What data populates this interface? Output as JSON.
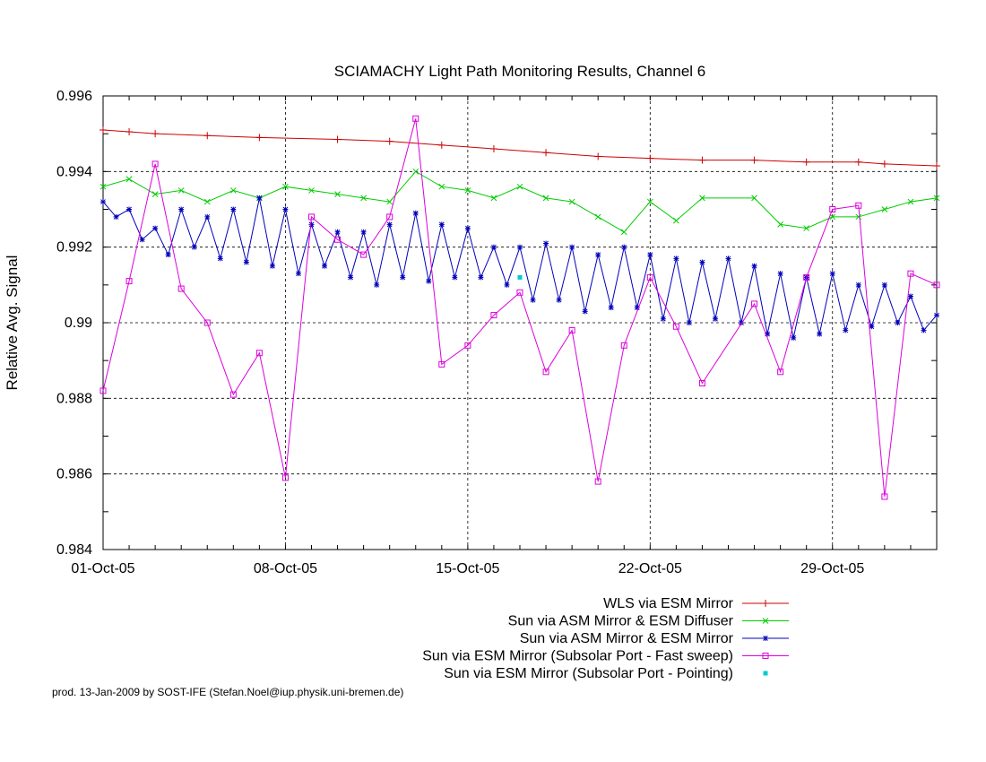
{
  "chart_data": {
    "type": "line",
    "title": "SCIAMACHY Light Path Monitoring Results, Channel 6",
    "xlabel": "",
    "ylabel": "Relative Avg. Signal",
    "xlim": [
      "2005-10-01",
      "2005-11-02"
    ],
    "ylim": [
      0.984,
      0.996
    ],
    "x_ticks": [
      "01-Oct-05",
      "08-Oct-05",
      "15-Oct-05",
      "22-Oct-05",
      "29-Oct-05"
    ],
    "y_ticks": [
      "0.984",
      "0.986",
      "0.988",
      "0.99",
      "0.992",
      "0.994",
      "0.996"
    ],
    "grid": true,
    "legend_position": "bottom-right, below plot",
    "series": [
      {
        "name": "WLS via ESM Mirror",
        "color": "#cc0000",
        "marker": "plus",
        "points": [
          [
            "2005-10-01",
            0.9951
          ],
          [
            "2005-10-02",
            0.99505
          ],
          [
            "2005-10-03",
            0.995
          ],
          [
            "2005-10-05",
            0.99495
          ],
          [
            "2005-10-07",
            0.9949
          ],
          [
            "2005-10-10",
            0.99485
          ],
          [
            "2005-10-12",
            0.9948
          ],
          [
            "2005-10-14",
            0.9947
          ],
          [
            "2005-10-16",
            0.9946
          ],
          [
            "2005-10-18",
            0.9945
          ],
          [
            "2005-10-20",
            0.9944
          ],
          [
            "2005-10-22",
            0.99435
          ],
          [
            "2005-10-24",
            0.9943
          ],
          [
            "2005-10-26",
            0.9943
          ],
          [
            "2005-10-28",
            0.99425
          ],
          [
            "2005-10-30",
            0.99425
          ],
          [
            "2005-10-31",
            0.9942
          ],
          [
            "2005-11-02",
            0.99415
          ]
        ]
      },
      {
        "name": "Sun via ASM Mirror & ESM Diffuser",
        "color": "#00cc00",
        "marker": "x",
        "points": [
          [
            "2005-10-01",
            0.9936
          ],
          [
            "2005-10-02",
            0.9938
          ],
          [
            "2005-10-03",
            0.9934
          ],
          [
            "2005-10-04",
            0.9935
          ],
          [
            "2005-10-05",
            0.9932
          ],
          [
            "2005-10-06",
            0.9935
          ],
          [
            "2005-10-07",
            0.9933
          ],
          [
            "2005-10-08",
            0.9936
          ],
          [
            "2005-10-09",
            0.9935
          ],
          [
            "2005-10-10",
            0.9934
          ],
          [
            "2005-10-11",
            0.9933
          ],
          [
            "2005-10-12",
            0.9932
          ],
          [
            "2005-10-13",
            0.994
          ],
          [
            "2005-10-14",
            0.9936
          ],
          [
            "2005-10-15",
            0.9935
          ],
          [
            "2005-10-16",
            0.9933
          ],
          [
            "2005-10-17",
            0.9936
          ],
          [
            "2005-10-18",
            0.9933
          ],
          [
            "2005-10-19",
            0.9932
          ],
          [
            "2005-10-20",
            0.9928
          ],
          [
            "2005-10-21",
            0.9924
          ],
          [
            "2005-10-22",
            0.9932
          ],
          [
            "2005-10-23",
            0.9927
          ],
          [
            "2005-10-24",
            0.9933
          ],
          [
            "2005-10-26",
            0.9933
          ],
          [
            "2005-10-27",
            0.9926
          ],
          [
            "2005-10-28",
            0.9925
          ],
          [
            "2005-10-29",
            0.9928
          ],
          [
            "2005-10-30",
            0.9928
          ],
          [
            "2005-10-31",
            0.993
          ],
          [
            "2005-11-01",
            0.9932
          ],
          [
            "2005-11-02",
            0.9933
          ]
        ]
      },
      {
        "name": "Sun via ASM Mirror & ESM Mirror",
        "color": "#0000bb",
        "marker": "star",
        "points": [
          [
            "2005-10-01",
            0.9932
          ],
          [
            "2005-10-01.5",
            0.9928
          ],
          [
            "2005-10-02",
            0.993
          ],
          [
            "2005-10-02.5",
            0.9922
          ],
          [
            "2005-10-03",
            0.9925
          ],
          [
            "2005-10-03.5",
            0.9918
          ],
          [
            "2005-10-04",
            0.993
          ],
          [
            "2005-10-04.5",
            0.992
          ],
          [
            "2005-10-05",
            0.9928
          ],
          [
            "2005-10-05.5",
            0.9917
          ],
          [
            "2005-10-06",
            0.993
          ],
          [
            "2005-10-06.5",
            0.9916
          ],
          [
            "2005-10-07",
            0.9933
          ],
          [
            "2005-10-07.5",
            0.9915
          ],
          [
            "2005-10-08",
            0.993
          ],
          [
            "2005-10-08.5",
            0.9913
          ],
          [
            "2005-10-09",
            0.9926
          ],
          [
            "2005-10-09.5",
            0.9915
          ],
          [
            "2005-10-10",
            0.9924
          ],
          [
            "2005-10-10.5",
            0.9912
          ],
          [
            "2005-10-11",
            0.9924
          ],
          [
            "2005-10-11.5",
            0.991
          ],
          [
            "2005-10-12",
            0.9926
          ],
          [
            "2005-10-12.5",
            0.9912
          ],
          [
            "2005-10-13",
            0.9929
          ],
          [
            "2005-10-13.5",
            0.9911
          ],
          [
            "2005-10-14",
            0.9926
          ],
          [
            "2005-10-14.5",
            0.9912
          ],
          [
            "2005-10-15",
            0.9925
          ],
          [
            "2005-10-15.5",
            0.9912
          ],
          [
            "2005-10-16",
            0.992
          ],
          [
            "2005-10-16.5",
            0.991
          ],
          [
            "2005-10-17",
            0.992
          ],
          [
            "2005-10-17.5",
            0.9906
          ],
          [
            "2005-10-18",
            0.9921
          ],
          [
            "2005-10-18.5",
            0.9906
          ],
          [
            "2005-10-19",
            0.992
          ],
          [
            "2005-10-19.5",
            0.9903
          ],
          [
            "2005-10-20",
            0.9918
          ],
          [
            "2005-10-20.5",
            0.9904
          ],
          [
            "2005-10-21",
            0.992
          ],
          [
            "2005-10-21.5",
            0.9904
          ],
          [
            "2005-10-22",
            0.9918
          ],
          [
            "2005-10-22.5",
            0.9901
          ],
          [
            "2005-10-23",
            0.9917
          ],
          [
            "2005-10-23.5",
            0.99
          ],
          [
            "2005-10-24",
            0.9916
          ],
          [
            "2005-10-24.5",
            0.9901
          ],
          [
            "2005-10-25",
            0.9917
          ],
          [
            "2005-10-25.5",
            0.99
          ],
          [
            "2005-10-26",
            0.9915
          ],
          [
            "2005-10-26.5",
            0.9897
          ],
          [
            "2005-10-27",
            0.9913
          ],
          [
            "2005-10-27.5",
            0.9896
          ],
          [
            "2005-10-28",
            0.9912
          ],
          [
            "2005-10-28.5",
            0.9897
          ],
          [
            "2005-10-29",
            0.9913
          ],
          [
            "2005-10-29.5",
            0.9898
          ],
          [
            "2005-10-30",
            0.991
          ],
          [
            "2005-10-30.5",
            0.9899
          ],
          [
            "2005-10-31",
            0.991
          ],
          [
            "2005-10-31.5",
            0.99
          ],
          [
            "2005-11-01",
            0.9907
          ],
          [
            "2005-11-01.5",
            0.9898
          ],
          [
            "2005-11-02",
            0.9902
          ]
        ]
      },
      {
        "name": "Sun via ESM Mirror (Subsolar Port - Fast sweep)",
        "color": "#dd00dd",
        "marker": "square",
        "points": [
          [
            "2005-10-01",
            0.9882
          ],
          [
            "2005-10-02",
            0.9911
          ],
          [
            "2005-10-03",
            0.9942
          ],
          [
            "2005-10-04",
            0.9909
          ],
          [
            "2005-10-05",
            0.99
          ],
          [
            "2005-10-06",
            0.9881
          ],
          [
            "2005-10-07",
            0.9892
          ],
          [
            "2005-10-08",
            0.9859
          ],
          [
            "2005-10-09",
            0.9928
          ],
          [
            "2005-10-10",
            0.9922
          ],
          [
            "2005-10-11",
            0.9918
          ],
          [
            "2005-10-12",
            0.9928
          ],
          [
            "2005-10-13",
            0.9954
          ],
          [
            "2005-10-14",
            0.9889
          ],
          [
            "2005-10-15",
            0.9894
          ],
          [
            "2005-10-16",
            0.9902
          ],
          [
            "2005-10-17",
            0.9908
          ],
          [
            "2005-10-18",
            0.9887
          ],
          [
            "2005-10-19",
            0.9898
          ],
          [
            "2005-10-20",
            0.9858
          ],
          [
            "2005-10-21",
            0.9894
          ],
          [
            "2005-10-22",
            0.9912
          ],
          [
            "2005-10-23",
            0.9899
          ],
          [
            "2005-10-24",
            0.9884
          ],
          [
            "2005-10-26",
            0.9905
          ],
          [
            "2005-10-27",
            0.9887
          ],
          [
            "2005-10-28",
            0.9912
          ],
          [
            "2005-10-29",
            0.993
          ],
          [
            "2005-10-30",
            0.9931
          ],
          [
            "2005-10-31",
            0.9854
          ],
          [
            "2005-11-01",
            0.9913
          ],
          [
            "2005-11-02",
            0.991
          ]
        ]
      },
      {
        "name": "Sun via ESM Mirror (Subsolar Port - Pointing)",
        "color": "#00cccc",
        "marker": "dot",
        "points": [
          [
            "2005-10-17",
            0.9912
          ]
        ]
      }
    ]
  },
  "footer": {
    "credit": "prod. 13-Jan-2009 by SOST-IFE (Stefan.Noel@iup.physik.uni-bremen.de)"
  }
}
